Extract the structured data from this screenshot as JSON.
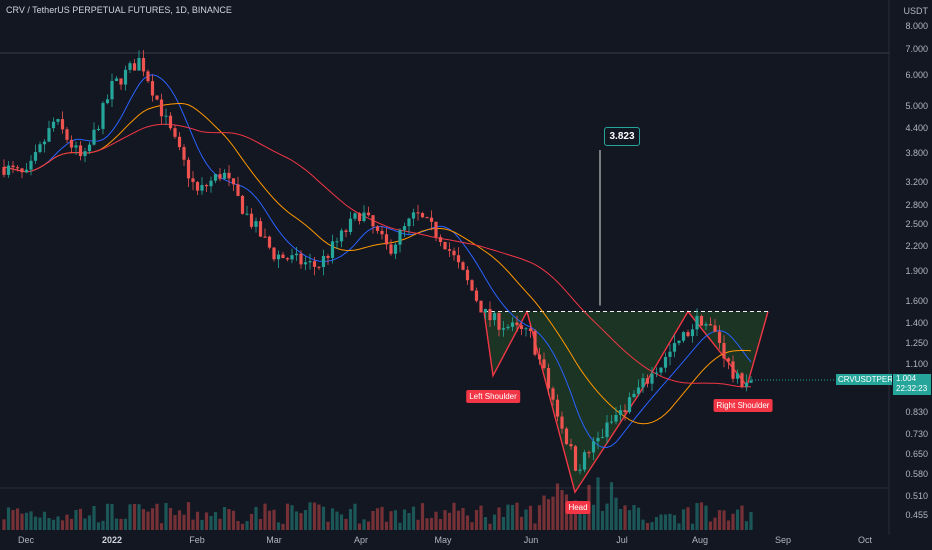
{
  "chart_data": {
    "type": "candlestick",
    "title": "CRV / TetherUS PERPETUAL FUTURES, 1D, BINANCE",
    "y_unit": "USDT",
    "y_scale": "log",
    "y_ticks": [
      "8.000",
      "7.000",
      "6.000",
      "5.000",
      "4.400",
      "3.800",
      "3.200",
      "2.800",
      "2.500",
      "2.200",
      "1.900",
      "1.600",
      "1.400",
      "1.250",
      "1.100",
      "0.950",
      "0.830",
      "0.730",
      "0.650",
      "0.580",
      "0.510",
      "0.455"
    ],
    "x_ticks": [
      "Dec",
      "2022",
      "Feb",
      "Mar",
      "Apr",
      "May",
      "Jun",
      "Jul",
      "Aug",
      "Sep",
      "Oct"
    ],
    "price_series": [
      {
        "month": "Dec",
        "close": 3.3
      },
      {
        "month": "Dec",
        "close": 4.6
      },
      {
        "month": "Dec",
        "close": 3.6
      },
      {
        "month": "2022",
        "close": 5.6
      },
      {
        "month": "2022",
        "close": 6.6
      },
      {
        "month": "2022",
        "close": 4.4
      },
      {
        "month": "Feb",
        "close": 3.0
      },
      {
        "month": "Feb",
        "close": 3.4
      },
      {
        "month": "Feb",
        "close": 2.6
      },
      {
        "month": "Mar",
        "close": 2.1
      },
      {
        "month": "Mar",
        "close": 1.95
      },
      {
        "month": "Apr",
        "close": 2.7
      },
      {
        "month": "Apr",
        "close": 2.15
      },
      {
        "month": "Apr",
        "close": 2.65
      },
      {
        "month": "May",
        "close": 2.3
      },
      {
        "month": "May",
        "close": 1.45
      },
      {
        "month": "Jun",
        "close": 1.3
      },
      {
        "month": "Jun",
        "close": 0.6
      },
      {
        "month": "Jul",
        "close": 0.85
      },
      {
        "month": "Jul",
        "close": 1.1
      },
      {
        "month": "Aug",
        "close": 1.45
      },
      {
        "month": "Aug",
        "close": 1.3
      },
      {
        "month": "Aug",
        "close": 1.0
      }
    ],
    "pattern": {
      "name": "inverse head and shoulders",
      "labels": [
        "Left Shoulder",
        "Head",
        "Right Shoulder"
      ],
      "neckline": 1.5,
      "target": "3.823"
    },
    "current": {
      "symbol": "CRVUSDTPERP",
      "price": "1.004",
      "countdown": "22:32:23"
    },
    "colors": {
      "up": "#26a69a",
      "down": "#ef5350",
      "ma_blue": "#2962ff",
      "ma_orange": "#ff9800",
      "ma_red": "#f23645",
      "pattern_fill": "#1e3a24",
      "background": "#131722"
    }
  }
}
